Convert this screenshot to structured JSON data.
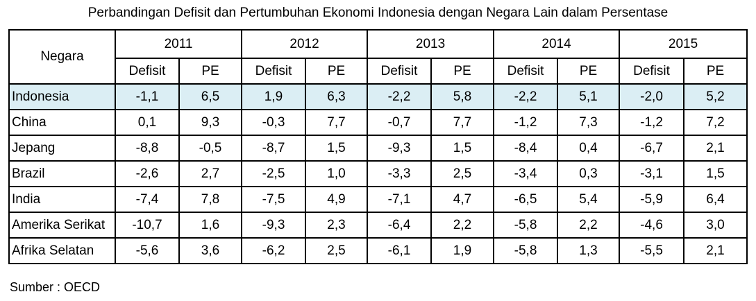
{
  "title": "Perbandingan Defisit dan Pertumbuhan Ekonomi Indonesia dengan Negara Lain dalam Persentase",
  "table": {
    "corner": "Negara",
    "years": [
      "2011",
      "2012",
      "2013",
      "2014",
      "2015"
    ],
    "subheaders": [
      [
        "Defisit",
        "PE"
      ],
      [
        "Defisit",
        "PE"
      ],
      [
        "Defisit",
        "PE"
      ],
      [
        "Defisit",
        "PE"
      ],
      [
        "Defisit",
        "PE"
      ]
    ],
    "rows": [
      [
        "Indonesia",
        "-1,1",
        "6,5",
        "1,9",
        "6,3",
        "-2,2",
        "5,8",
        "-2,2",
        "5,1",
        "-2,0",
        "5,2"
      ],
      [
        "China",
        "0,1",
        "9,3",
        "-0,3",
        "7,7",
        "-0,7",
        "7,7",
        "-1,2",
        "7,3",
        "-1,2",
        "7,2"
      ],
      [
        "Jepang",
        "-8,8",
        "-0,5",
        "-8,7",
        "1,5",
        "-9,3",
        "1,5",
        "-8,4",
        "0,4",
        "-6,7",
        "2,1"
      ],
      [
        "Brazil",
        "-2,6",
        "2,7",
        "-2,5",
        "1,0",
        "-3,3",
        "2,5",
        "-3,4",
        "0,3",
        "-3,1",
        "1,5"
      ],
      [
        "India",
        "-7,4",
        "7,8",
        "-7,5",
        "4,9",
        "-7,1",
        "4,7",
        "-6,5",
        "5,4",
        "-5,9",
        "6,4"
      ],
      [
        "Amerika Serikat",
        "-10,7",
        "1,6",
        "-9,3",
        "2,3",
        "-6,4",
        "2,2",
        "-5,8",
        "2,2",
        "-4,6",
        "3,0"
      ],
      [
        "Afrika Selatan",
        "-5,6",
        "3,6",
        "-6,2",
        "2,5",
        "-6,1",
        "1,9",
        "-5,8",
        "1,3",
        "-5,5",
        "2,1"
      ]
    ]
  },
  "source": "Sumber : OECD"
}
